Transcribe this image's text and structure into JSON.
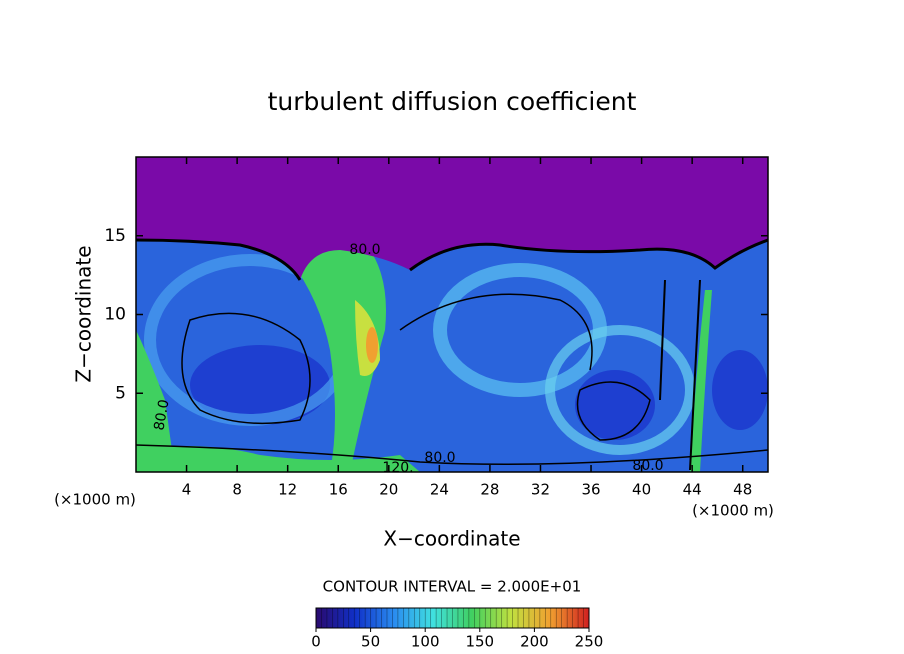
{
  "chart_data": {
    "type": "contour",
    "title": "turbulent diffusion coefficient",
    "x_label": "X−coordinate",
    "y_label": "Z−coordinate",
    "x_unit": "(×1000 m)",
    "xlim": [
      0,
      50
    ],
    "xticks": [
      4,
      8,
      12,
      16,
      20,
      24,
      28,
      32,
      36,
      40,
      44,
      48
    ],
    "ylim": [
      0,
      20
    ],
    "yticks": [
      5,
      10,
      15
    ],
    "contour_interval_label": "CONTOUR INTERVAL = 2.000E+01",
    "annotations": [
      "80.0",
      "120.",
      "80.0",
      "80.0",
      "80.0"
    ],
    "colorbar": {
      "lim": [
        0,
        250
      ],
      "ticks": [
        0,
        50,
        100,
        150,
        200,
        250
      ],
      "colors": [
        "#2a0a6e",
        "#1030c8",
        "#2a8cf0",
        "#40e0e0",
        "#40d060",
        "#c0e040",
        "#f0a030",
        "#d02020"
      ]
    }
  }
}
